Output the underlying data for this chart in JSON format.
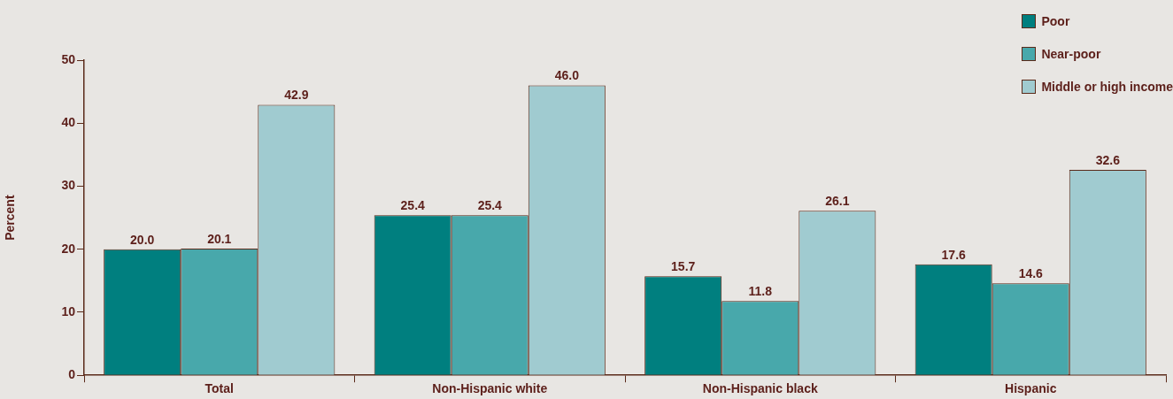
{
  "chart_data": {
    "type": "bar",
    "ylabel": "Percent",
    "categories": [
      "Total",
      "Non-Hispanic white",
      "Non-Hispanic black",
      "Hispanic"
    ],
    "series": [
      {
        "name": "Poor",
        "color": "#007f7f",
        "values": [
          20.0,
          25.4,
          15.7,
          17.6
        ]
      },
      {
        "name": "Near-poor",
        "color": "#48a8ab",
        "values": [
          20.1,
          25.4,
          11.8,
          14.6
        ]
      },
      {
        "name": "Middle or high income",
        "color": "#a0cbd0",
        "values": [
          42.9,
          46.0,
          26.1,
          32.6
        ]
      }
    ],
    "value_labels": [
      [
        "20.0",
        "25.4",
        "15.7",
        "17.6"
      ],
      [
        "20.1",
        "25.4",
        "11.8",
        "14.6"
      ],
      [
        "42.9",
        "46.0",
        "26.1",
        "32.6"
      ]
    ],
    "ylim": [
      0,
      50
    ],
    "yticks": [
      0,
      10,
      20,
      30,
      40,
      50
    ],
    "grid": false,
    "legend": "top right"
  }
}
